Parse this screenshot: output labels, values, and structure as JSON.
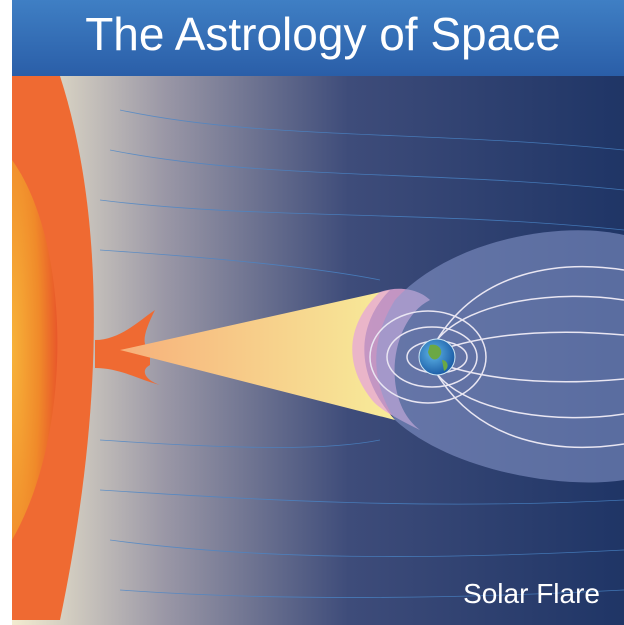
{
  "header": {
    "title": "The Astrology of Space"
  },
  "caption": "Solar Flare"
}
